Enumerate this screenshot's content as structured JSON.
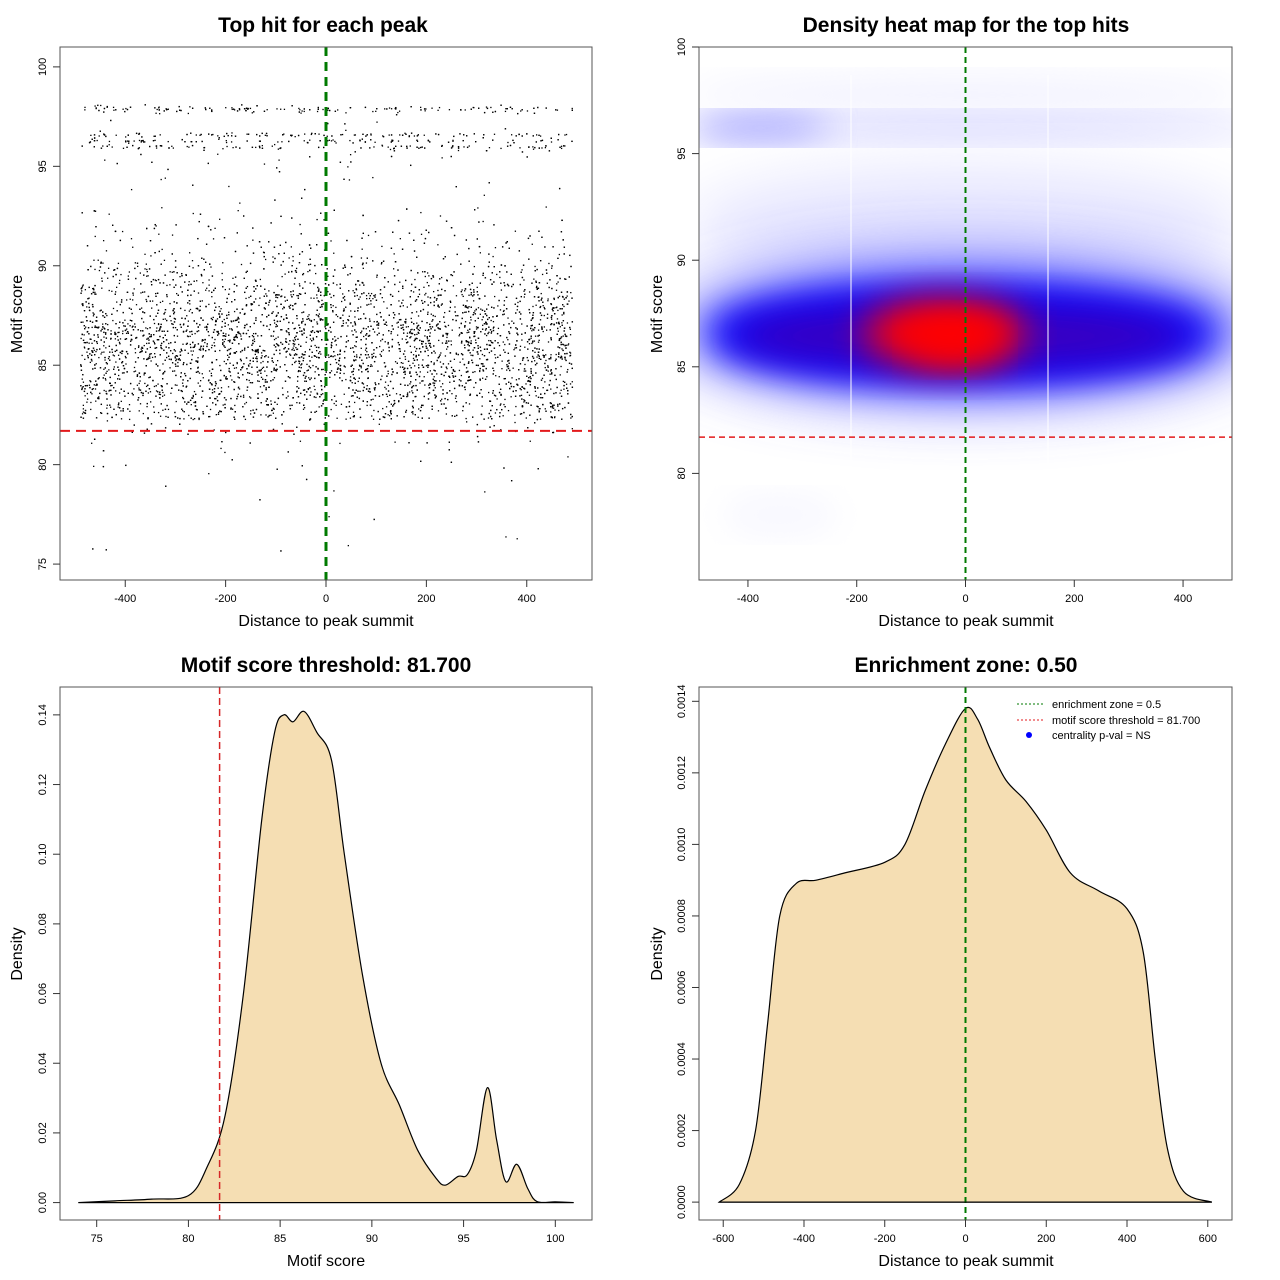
{
  "chart_data": [
    {
      "type": "scatter",
      "title": "Top hit for each peak",
      "xlabel": "Distance to peak summit",
      "ylabel": "Motif score",
      "xlim": [
        -530,
        530
      ],
      "ylim": [
        74.2,
        101
      ],
      "xticks": [
        -400,
        -200,
        0,
        200,
        400
      ],
      "yticks": [
        75,
        80,
        85,
        90,
        95,
        100
      ],
      "n_points_approx": 7000,
      "point_distribution": "x uniform in [-490, 490]; y concentrated 82-90 (mode ~86), rows near 96 and 98, sparse tail down to 75",
      "threshold_line": 81.7,
      "center_line": 0,
      "colors": {
        "points": "#000000",
        "threshold": "#e31a1c",
        "center": "#007a00"
      }
    },
    {
      "type": "heatmap",
      "title": "Density heat map for the top hits",
      "xlabel": "Distance to peak summit",
      "ylabel": "Motif score",
      "xlim": [
        -490,
        490
      ],
      "ylim": [
        75,
        100
      ],
      "xticks": [
        -400,
        -200,
        0,
        200,
        400
      ],
      "yticks": [
        80,
        85,
        90,
        95,
        100
      ],
      "high_density_center": [
        -30,
        86.5
      ],
      "dense_band": [
        83.5,
        89
      ],
      "secondary_band": 96.2,
      "threshold_line": 81.7,
      "center_line": 0,
      "colors": {
        "low": "#ffffff",
        "mid": "#0000ff",
        "high": "#ff0000"
      }
    },
    {
      "type": "area",
      "title": "Motif score threshold: 81.700",
      "xlabel": "Motif score",
      "ylabel": "Density",
      "xlim": [
        73,
        102
      ],
      "ylim": [
        -0.005,
        0.148
      ],
      "xticks": [
        75,
        80,
        85,
        90,
        95,
        100
      ],
      "yticks": [
        "0.00",
        "0.02",
        "0.04",
        "0.06",
        "0.08",
        "0.10",
        "0.12",
        "0.14"
      ],
      "x": [
        74,
        76,
        78,
        80,
        81,
        82,
        83,
        84,
        84.7,
        85.2,
        85.7,
        86.3,
        87,
        87.8,
        88.5,
        89.5,
        90.5,
        91.5,
        92.5,
        93.5,
        94,
        94.7,
        95.2,
        95.7,
        96.3,
        96.8,
        97.3,
        97.9,
        98.5,
        99,
        100,
        101
      ],
      "y": [
        0,
        0.0005,
        0.001,
        0.002,
        0.01,
        0.025,
        0.06,
        0.11,
        0.135,
        0.14,
        0.138,
        0.141,
        0.135,
        0.127,
        0.1,
        0.065,
        0.04,
        0.028,
        0.015,
        0.007,
        0.005,
        0.0075,
        0.008,
        0.015,
        0.033,
        0.018,
        0.006,
        0.011,
        0.004,
        0.0003,
        0.0002,
        0
      ],
      "threshold_line": 81.7,
      "colors": {
        "fill": "#f5deb3",
        "line": "#000000",
        "threshold": "#d62728"
      }
    },
    {
      "type": "area",
      "title": "Enrichment zone: 0.50",
      "xlabel": "Distance to peak summit",
      "ylabel": "Density",
      "xlim": [
        -660,
        660
      ],
      "ylim": [
        -5e-05,
        0.00144
      ],
      "xticks": [
        -600,
        -400,
        -200,
        0,
        200,
        400,
        600
      ],
      "yticks": [
        "0.0000",
        "0.0002",
        "0.0004",
        "0.0006",
        "0.0008",
        "0.0010",
        "0.0012",
        "0.0014"
      ],
      "x": [
        -610,
        -560,
        -520,
        -490,
        -460,
        -420,
        -370,
        -300,
        -200,
        -150,
        -100,
        -50,
        0,
        30,
        60,
        100,
        150,
        200,
        260,
        330,
        400,
        440,
        470,
        500,
        540,
        610
      ],
      "y": [
        0,
        5e-05,
        0.0002,
        0.0005,
        0.0008,
        0.00089,
        0.0009,
        0.00092,
        0.00095,
        0.001,
        0.00115,
        0.00128,
        0.00138,
        0.00135,
        0.00127,
        0.00118,
        0.00112,
        0.00104,
        0.00092,
        0.00087,
        0.00082,
        0.0007,
        0.0004,
        0.00015,
        3e-05,
        0
      ],
      "center_line": 0,
      "legend": {
        "placement": "top-right",
        "entries": [
          {
            "label": "enrichment zone = 0.5",
            "style": "dotted",
            "color": "#007a00"
          },
          {
            "label": "motif score threshold = 81.700",
            "style": "dotted",
            "color": "#e31a1c"
          },
          {
            "label": "centrality p-val = NS",
            "style": "point",
            "color": "#0000ff"
          }
        ]
      },
      "colors": {
        "fill": "#f5deb3",
        "line": "#000000",
        "center": "#007a00"
      }
    }
  ]
}
